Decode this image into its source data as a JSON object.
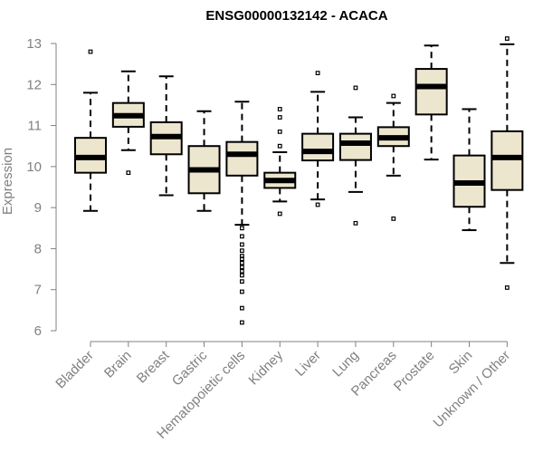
{
  "chart_data": {
    "type": "boxplot",
    "title": "ENSG00000132142 - ACACA",
    "xlabel": "",
    "ylabel": "Expression",
    "ylim": [
      6,
      13
    ],
    "yticks": [
      6,
      7,
      8,
      9,
      10,
      11,
      12,
      13
    ],
    "grid": false,
    "box_fill": "#ede6cf",
    "categories": [
      "Bladder",
      "Brain",
      "Breast",
      "Gastric",
      "Hematopoietic cells",
      "Kidney",
      "Liver",
      "Lung",
      "Pancreas",
      "Prostate",
      "Skin",
      "Unknown / Other"
    ],
    "boxes": [
      {
        "whisker_low": 8.92,
        "q1": 9.85,
        "median": 10.22,
        "q3": 10.7,
        "whisker_high": 11.8,
        "outliers": [
          12.8
        ]
      },
      {
        "whisker_low": 10.4,
        "q1": 10.97,
        "median": 11.24,
        "q3": 11.55,
        "whisker_high": 12.32,
        "outliers": [
          9.85
        ]
      },
      {
        "whisker_low": 9.3,
        "q1": 10.3,
        "median": 10.73,
        "q3": 11.08,
        "whisker_high": 12.2,
        "outliers": []
      },
      {
        "whisker_low": 8.92,
        "q1": 9.35,
        "median": 9.92,
        "q3": 10.5,
        "whisker_high": 11.35,
        "outliers": []
      },
      {
        "whisker_low": 8.58,
        "q1": 9.78,
        "median": 10.3,
        "q3": 10.6,
        "whisker_high": 11.58,
        "outliers": [
          8.5,
          8.3,
          8.1,
          7.95,
          7.82,
          7.75,
          7.65,
          7.55,
          7.45,
          7.35,
          7.2,
          6.95,
          6.55,
          6.2
        ]
      },
      {
        "whisker_low": 9.15,
        "q1": 9.48,
        "median": 9.66,
        "q3": 9.85,
        "whisker_high": 10.35,
        "outliers": [
          11.4,
          11.2,
          10.85,
          10.5,
          8.85
        ]
      },
      {
        "whisker_low": 9.2,
        "q1": 10.15,
        "median": 10.37,
        "q3": 10.8,
        "whisker_high": 11.82,
        "outliers": [
          12.28,
          9.07
        ]
      },
      {
        "whisker_low": 9.38,
        "q1": 10.16,
        "median": 10.57,
        "q3": 10.8,
        "whisker_high": 11.2,
        "outliers": [
          11.92,
          8.62
        ]
      },
      {
        "whisker_low": 9.78,
        "q1": 10.5,
        "median": 10.7,
        "q3": 10.96,
        "whisker_high": 11.55,
        "outliers": [
          11.72,
          8.73
        ]
      },
      {
        "whisker_low": 10.17,
        "q1": 11.27,
        "median": 11.95,
        "q3": 12.38,
        "whisker_high": 12.95,
        "outliers": []
      },
      {
        "whisker_low": 8.45,
        "q1": 9.02,
        "median": 9.6,
        "q3": 10.27,
        "whisker_high": 11.4,
        "outliers": []
      },
      {
        "whisker_low": 7.65,
        "q1": 9.43,
        "median": 10.22,
        "q3": 10.86,
        "whisker_high": 12.98,
        "outliers": [
          13.12,
          7.05
        ]
      }
    ]
  }
}
